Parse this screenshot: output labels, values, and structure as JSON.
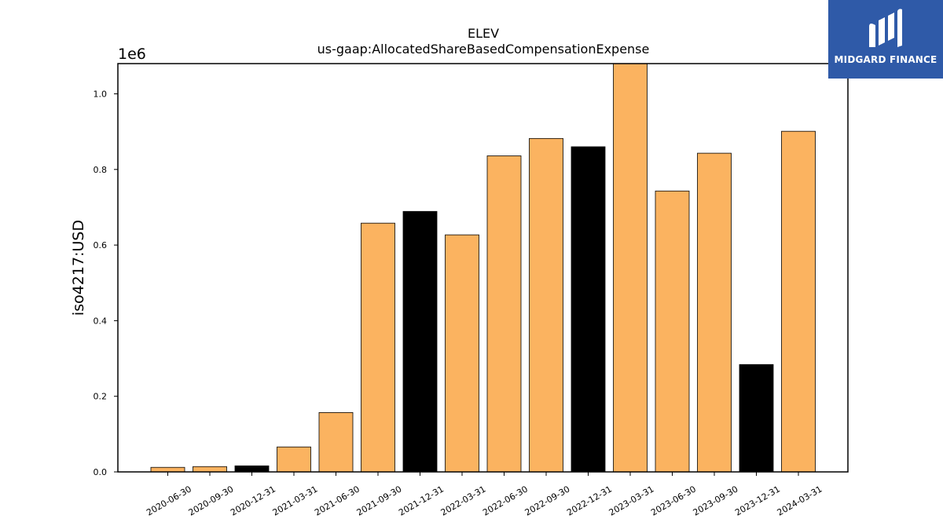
{
  "chart_data": {
    "type": "bar",
    "title": "ELEV",
    "subtitle": "us-gaap:AllocatedShareBasedCompensationExpense",
    "ylabel": "iso4217:USD",
    "xlabel": "",
    "y_scale_label": "1e6",
    "ylim": [
      0,
      1.08
    ],
    "yticks": [
      0.0,
      0.2,
      0.4,
      0.6,
      0.8,
      1.0
    ],
    "ytick_labels": [
      "0.0",
      "0.2",
      "0.4",
      "0.6",
      "0.8",
      "1.0"
    ],
    "grid": false,
    "categories": [
      "2020-06-30",
      "2020-09-30",
      "2020-12-31",
      "2021-03-31",
      "2021-06-30",
      "2021-09-30",
      "2021-12-31",
      "2022-03-31",
      "2022-06-30",
      "2022-09-30",
      "2022-12-31",
      "2023-03-31",
      "2023-06-30",
      "2023-09-30",
      "2023-12-31",
      "2024-03-31"
    ],
    "values": [
      0.012,
      0.014,
      0.016,
      0.066,
      0.157,
      0.658,
      0.689,
      0.627,
      0.836,
      0.882,
      0.86,
      1.08,
      0.743,
      0.843,
      0.284,
      0.901
    ],
    "bar_colors": [
      "#fbb360",
      "#fbb360",
      "#000000",
      "#fbb360",
      "#fbb360",
      "#fbb360",
      "#000000",
      "#fbb360",
      "#fbb360",
      "#fbb360",
      "#000000",
      "#fbb360",
      "#fbb360",
      "#fbb360",
      "#000000",
      "#fbb360"
    ]
  },
  "logo": {
    "text": "MIDGARD FINANCE",
    "background": "#2f5aa8"
  }
}
